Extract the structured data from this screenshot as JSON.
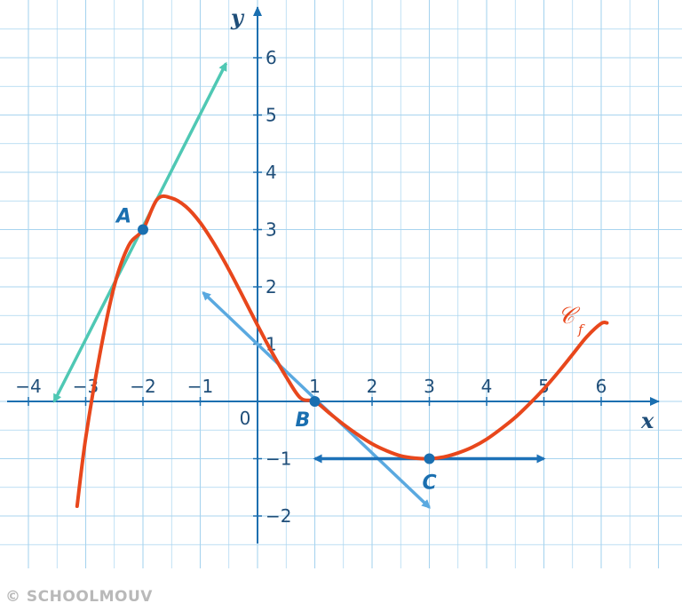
{
  "chart_data": {
    "type": "line",
    "xlabel": "x",
    "ylabel": "y",
    "xlim": [
      -4.4,
      7.1
    ],
    "ylim": [
      -2.5,
      6.7
    ],
    "origin_label": "0",
    "x_ticks": [
      {
        "value": -4,
        "label": "−4"
      },
      {
        "value": -3,
        "label": "−3"
      },
      {
        "value": -2,
        "label": "−2"
      },
      {
        "value": -1,
        "label": "−1"
      },
      {
        "value": 1,
        "label": "1"
      },
      {
        "value": 2,
        "label": "2"
      },
      {
        "value": 3,
        "label": "3"
      },
      {
        "value": 4,
        "label": "4"
      },
      {
        "value": 5,
        "label": "5"
      },
      {
        "value": 6,
        "label": "6"
      }
    ],
    "y_ticks": [
      {
        "value": -2,
        "label": "−2"
      },
      {
        "value": -1,
        "label": "−1"
      },
      {
        "value": 1,
        "label": "1"
      },
      {
        "value": 2,
        "label": "2"
      },
      {
        "value": 3,
        "label": "3"
      },
      {
        "value": 4,
        "label": "4"
      },
      {
        "value": 5,
        "label": "5"
      },
      {
        "value": 6,
        "label": "6"
      }
    ],
    "grid": true,
    "curve": {
      "name": "𝒞",
      "subscript": "f",
      "color": "#e8471c",
      "x": [
        -3.15,
        -3.0,
        -2.75,
        -2.5,
        -2.25,
        -2.0,
        -1.75,
        -1.5,
        -1.25,
        -1.0,
        -0.75,
        -0.5,
        -0.25,
        0.0,
        0.25,
        0.5,
        0.75,
        1.0,
        1.25,
        1.5,
        1.75,
        2.0,
        2.25,
        2.5,
        2.75,
        3.0,
        3.25,
        3.5,
        3.75,
        4.0,
        4.25,
        4.5,
        4.75,
        5.0,
        5.25,
        5.5,
        5.75,
        6.0,
        6.1
      ],
      "y": [
        -1.83,
        -0.64,
        0.84,
        2.02,
        2.72,
        3.0,
        3.53,
        3.55,
        3.4,
        3.12,
        2.74,
        2.3,
        1.82,
        1.33,
        0.86,
        0.43,
        0.06,
        0.0,
        -0.2,
        -0.4,
        -0.58,
        -0.74,
        -0.86,
        -0.95,
        -0.99,
        -1.0,
        -0.97,
        -0.9,
        -0.8,
        -0.66,
        -0.48,
        -0.28,
        -0.04,
        0.22,
        0.51,
        0.82,
        1.13,
        1.36,
        1.37
      ]
    },
    "tangents": [
      {
        "label": "A",
        "point": [
          -2,
          3
        ],
        "from": [
          -3.55,
          0.0
        ],
        "to": [
          -0.55,
          5.9
        ],
        "color": "#4fc8b4"
      },
      {
        "label": "B",
        "point": [
          1,
          0
        ],
        "from": [
          -0.95,
          1.9
        ],
        "to": [
          3.0,
          -1.85
        ],
        "color": "#5aa9e0"
      },
      {
        "label": "C",
        "point": [
          3,
          -1
        ],
        "from": [
          1.0,
          -1.0
        ],
        "to": [
          5.0,
          -1.0
        ],
        "color": "#1d72b8"
      }
    ],
    "point_color": "#1a6fb0",
    "axis_color": "#1a6fb0",
    "grid_color": "#a8d4ef"
  },
  "watermark": "© SCHOOLMOUV"
}
